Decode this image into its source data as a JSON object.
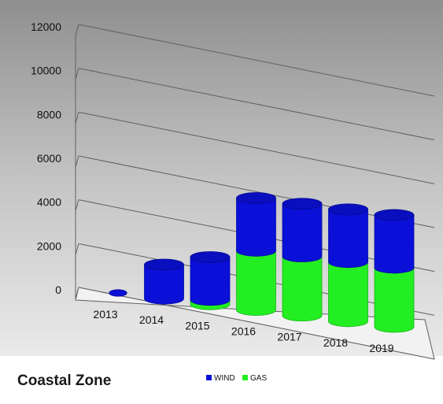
{
  "chart_data": {
    "type": "bar",
    "stacked": true,
    "three_d": true,
    "title": "Coastal Zone",
    "categories": [
      "2013",
      "2014",
      "2015",
      "2016",
      "2017",
      "2018",
      "2019"
    ],
    "series": [
      {
        "name": "GAS",
        "color": "#22ee22",
        "values": [
          0,
          0,
          200,
          2700,
          2700,
          2700,
          2700
        ]
      },
      {
        "name": "WIND",
        "color": "#0a10d8",
        "values": [
          0,
          1550,
          1950,
          2400,
          2400,
          2400,
          2400
        ]
      }
    ],
    "ylim": [
      0,
      12000
    ],
    "yticks": [
      "0",
      "2000",
      "4000",
      "6000",
      "8000",
      "10000",
      "12000"
    ],
    "grid": true,
    "legend": "bottom",
    "legend_order": [
      "WIND",
      "GAS"
    ],
    "background": "gray-gradient"
  }
}
